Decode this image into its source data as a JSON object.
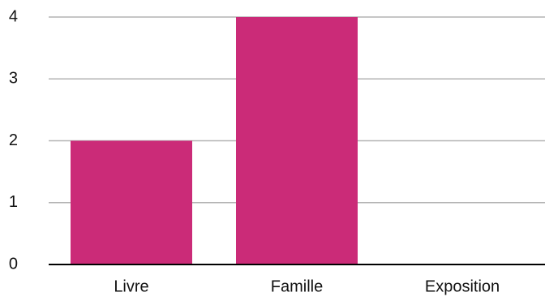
{
  "chart_data": {
    "type": "bar",
    "title": "",
    "xlabel": "",
    "ylabel": "",
    "categories": [
      "Livre",
      "Famille",
      "Exposition"
    ],
    "values": [
      2,
      4,
      0
    ],
    "ylim": [
      0,
      4
    ],
    "yticks": [
      "0",
      "1",
      "2",
      "3",
      "4"
    ],
    "grid": true,
    "legend": "none",
    "bar_color": "#CB2B78",
    "grid_color": "#B3B3B3",
    "axis_color": "#000000"
  }
}
